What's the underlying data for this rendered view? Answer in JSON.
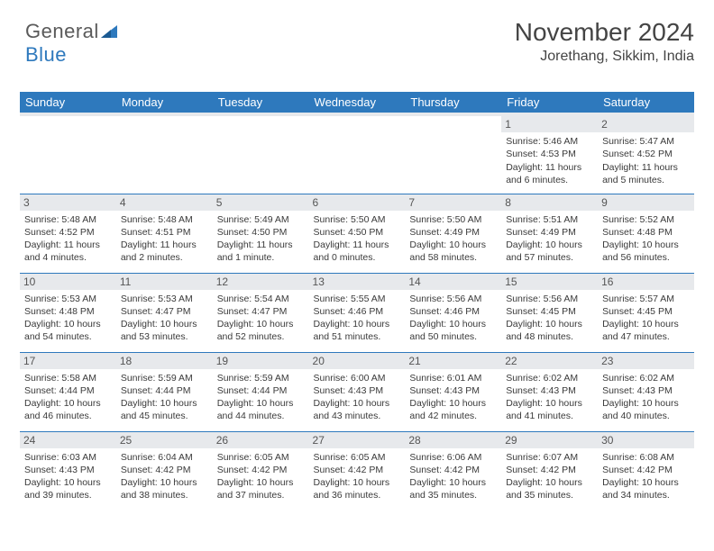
{
  "brand": {
    "part1": "General",
    "part2": "Blue"
  },
  "title": "November 2024",
  "location": "Jorethang, Sikkim, India",
  "colors": {
    "header_bg": "#2e79bd",
    "header_text": "#ffffff",
    "daynum_bg": "#e7e9ec",
    "border": "#2e79bd",
    "text": "#3a3a3a",
    "title_text": "#444444"
  },
  "weekdays": [
    "Sunday",
    "Monday",
    "Tuesday",
    "Wednesday",
    "Thursday",
    "Friday",
    "Saturday"
  ],
  "weeks": [
    [
      {
        "n": "",
        "sr": "",
        "ss": "",
        "dl": ""
      },
      {
        "n": "",
        "sr": "",
        "ss": "",
        "dl": ""
      },
      {
        "n": "",
        "sr": "",
        "ss": "",
        "dl": ""
      },
      {
        "n": "",
        "sr": "",
        "ss": "",
        "dl": ""
      },
      {
        "n": "",
        "sr": "",
        "ss": "",
        "dl": ""
      },
      {
        "n": "1",
        "sr": "Sunrise: 5:46 AM",
        "ss": "Sunset: 4:53 PM",
        "dl": "Daylight: 11 hours and 6 minutes."
      },
      {
        "n": "2",
        "sr": "Sunrise: 5:47 AM",
        "ss": "Sunset: 4:52 PM",
        "dl": "Daylight: 11 hours and 5 minutes."
      }
    ],
    [
      {
        "n": "3",
        "sr": "Sunrise: 5:48 AM",
        "ss": "Sunset: 4:52 PM",
        "dl": "Daylight: 11 hours and 4 minutes."
      },
      {
        "n": "4",
        "sr": "Sunrise: 5:48 AM",
        "ss": "Sunset: 4:51 PM",
        "dl": "Daylight: 11 hours and 2 minutes."
      },
      {
        "n": "5",
        "sr": "Sunrise: 5:49 AM",
        "ss": "Sunset: 4:50 PM",
        "dl": "Daylight: 11 hours and 1 minute."
      },
      {
        "n": "6",
        "sr": "Sunrise: 5:50 AM",
        "ss": "Sunset: 4:50 PM",
        "dl": "Daylight: 11 hours and 0 minutes."
      },
      {
        "n": "7",
        "sr": "Sunrise: 5:50 AM",
        "ss": "Sunset: 4:49 PM",
        "dl": "Daylight: 10 hours and 58 minutes."
      },
      {
        "n": "8",
        "sr": "Sunrise: 5:51 AM",
        "ss": "Sunset: 4:49 PM",
        "dl": "Daylight: 10 hours and 57 minutes."
      },
      {
        "n": "9",
        "sr": "Sunrise: 5:52 AM",
        "ss": "Sunset: 4:48 PM",
        "dl": "Daylight: 10 hours and 56 minutes."
      }
    ],
    [
      {
        "n": "10",
        "sr": "Sunrise: 5:53 AM",
        "ss": "Sunset: 4:48 PM",
        "dl": "Daylight: 10 hours and 54 minutes."
      },
      {
        "n": "11",
        "sr": "Sunrise: 5:53 AM",
        "ss": "Sunset: 4:47 PM",
        "dl": "Daylight: 10 hours and 53 minutes."
      },
      {
        "n": "12",
        "sr": "Sunrise: 5:54 AM",
        "ss": "Sunset: 4:47 PM",
        "dl": "Daylight: 10 hours and 52 minutes."
      },
      {
        "n": "13",
        "sr": "Sunrise: 5:55 AM",
        "ss": "Sunset: 4:46 PM",
        "dl": "Daylight: 10 hours and 51 minutes."
      },
      {
        "n": "14",
        "sr": "Sunrise: 5:56 AM",
        "ss": "Sunset: 4:46 PM",
        "dl": "Daylight: 10 hours and 50 minutes."
      },
      {
        "n": "15",
        "sr": "Sunrise: 5:56 AM",
        "ss": "Sunset: 4:45 PM",
        "dl": "Daylight: 10 hours and 48 minutes."
      },
      {
        "n": "16",
        "sr": "Sunrise: 5:57 AM",
        "ss": "Sunset: 4:45 PM",
        "dl": "Daylight: 10 hours and 47 minutes."
      }
    ],
    [
      {
        "n": "17",
        "sr": "Sunrise: 5:58 AM",
        "ss": "Sunset: 4:44 PM",
        "dl": "Daylight: 10 hours and 46 minutes."
      },
      {
        "n": "18",
        "sr": "Sunrise: 5:59 AM",
        "ss": "Sunset: 4:44 PM",
        "dl": "Daylight: 10 hours and 45 minutes."
      },
      {
        "n": "19",
        "sr": "Sunrise: 5:59 AM",
        "ss": "Sunset: 4:44 PM",
        "dl": "Daylight: 10 hours and 44 minutes."
      },
      {
        "n": "20",
        "sr": "Sunrise: 6:00 AM",
        "ss": "Sunset: 4:43 PM",
        "dl": "Daylight: 10 hours and 43 minutes."
      },
      {
        "n": "21",
        "sr": "Sunrise: 6:01 AM",
        "ss": "Sunset: 4:43 PM",
        "dl": "Daylight: 10 hours and 42 minutes."
      },
      {
        "n": "22",
        "sr": "Sunrise: 6:02 AM",
        "ss": "Sunset: 4:43 PM",
        "dl": "Daylight: 10 hours and 41 minutes."
      },
      {
        "n": "23",
        "sr": "Sunrise: 6:02 AM",
        "ss": "Sunset: 4:43 PM",
        "dl": "Daylight: 10 hours and 40 minutes."
      }
    ],
    [
      {
        "n": "24",
        "sr": "Sunrise: 6:03 AM",
        "ss": "Sunset: 4:43 PM",
        "dl": "Daylight: 10 hours and 39 minutes."
      },
      {
        "n": "25",
        "sr": "Sunrise: 6:04 AM",
        "ss": "Sunset: 4:42 PM",
        "dl": "Daylight: 10 hours and 38 minutes."
      },
      {
        "n": "26",
        "sr": "Sunrise: 6:05 AM",
        "ss": "Sunset: 4:42 PM",
        "dl": "Daylight: 10 hours and 37 minutes."
      },
      {
        "n": "27",
        "sr": "Sunrise: 6:05 AM",
        "ss": "Sunset: 4:42 PM",
        "dl": "Daylight: 10 hours and 36 minutes."
      },
      {
        "n": "28",
        "sr": "Sunrise: 6:06 AM",
        "ss": "Sunset: 4:42 PM",
        "dl": "Daylight: 10 hours and 35 minutes."
      },
      {
        "n": "29",
        "sr": "Sunrise: 6:07 AM",
        "ss": "Sunset: 4:42 PM",
        "dl": "Daylight: 10 hours and 35 minutes."
      },
      {
        "n": "30",
        "sr": "Sunrise: 6:08 AM",
        "ss": "Sunset: 4:42 PM",
        "dl": "Daylight: 10 hours and 34 minutes."
      }
    ]
  ]
}
